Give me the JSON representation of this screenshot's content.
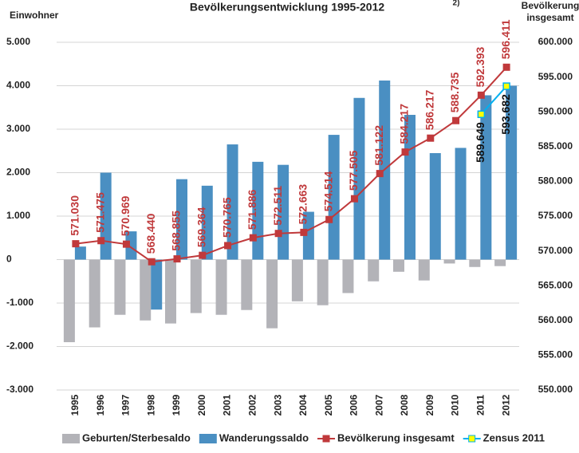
{
  "chart_data": {
    "type": "bar",
    "title": "Bevölkerungsentwicklung 1995-2012",
    "title_note": "2)",
    "y_label": "Einwohner",
    "y2_label": "Bevölkerung insgesamt",
    "categories": [
      "1995",
      "1996",
      "1997",
      "1998",
      "1999",
      "2000",
      "2001",
      "2002",
      "2003",
      "2004",
      "2005",
      "2006",
      "2007",
      "2008",
      "2009",
      "2010",
      "2011",
      "2012"
    ],
    "ylim": [
      -3000,
      5000
    ],
    "yticks": [
      {
        "value": -3000,
        "label": "-3.000"
      },
      {
        "value": -2000,
        "label": "-2.000"
      },
      {
        "value": -1000,
        "label": "-1.000"
      },
      0,
      {
        "value": 1000,
        "label": "1.000"
      },
      {
        "value": 2000,
        "label": "2.000"
      },
      {
        "value": 3000,
        "label": "3.000"
      },
      {
        "value": 4000,
        "label": "4.000"
      },
      {
        "value": 5000,
        "label": "5.000"
      }
    ],
    "y2lim": [
      550000,
      600000
    ],
    "y2ticks": [
      {
        "value": 550000,
        "label": "550.000"
      },
      {
        "value": 555000,
        "label": "555.000"
      },
      {
        "value": 560000,
        "label": "560.000"
      },
      {
        "value": 565000,
        "label": "565.000"
      },
      {
        "value": 570000,
        "label": "570.000"
      },
      {
        "value": 575000,
        "label": "575.000"
      },
      {
        "value": 580000,
        "label": "580.000"
      },
      {
        "value": 585000,
        "label": "585.000"
      },
      {
        "value": 590000,
        "label": "590.000"
      },
      {
        "value": 595000,
        "label": "595.000"
      },
      {
        "value": 600000,
        "label": "600.000"
      }
    ],
    "grid": true,
    "legend": "bottom",
    "series": [
      {
        "name": "Geburten/Sterbesaldo",
        "type": "bar",
        "color": "#b3b3b8",
        "values": [
          -1900,
          -1560,
          -1270,
          -1400,
          -1470,
          -1230,
          -1270,
          -1160,
          -1580,
          -960,
          -1050,
          -770,
          -500,
          -280,
          -480,
          -90,
          -170,
          -150
        ]
      },
      {
        "name": "Wanderungssaldo",
        "type": "bar",
        "color": "#4a8fc2",
        "values": [
          300,
          2000,
          650,
          -1150,
          1850,
          1700,
          2650,
          2250,
          2180,
          1100,
          2870,
          3720,
          4120,
          3330,
          2450,
          2570,
          3780,
          4000
        ]
      },
      {
        "name": "Bevölkerung insgesamt",
        "type": "line",
        "axis": "y2",
        "color": "#c0393b",
        "values": [
          571030,
          571475,
          570969,
          568440,
          568855,
          569364,
          570765,
          571886,
          572511,
          572663,
          574514,
          577505,
          581122,
          584217,
          586217,
          588735,
          592393,
          596411
        ],
        "value_labels": [
          "571.030",
          "571.475",
          "570.969",
          "568.440",
          "568.855",
          "569.364",
          "570.765",
          "571.886",
          "572.511",
          "572.663",
          "574.514",
          "577.505",
          "581.122",
          "584.217",
          "586.217",
          "588.735",
          "592.393",
          "596.411"
        ]
      },
      {
        "name": "Zensus 2011",
        "type": "line",
        "axis": "y2",
        "color": "#00b0f0",
        "values": [
          null,
          null,
          null,
          null,
          null,
          null,
          null,
          null,
          null,
          null,
          null,
          null,
          null,
          null,
          null,
          null,
          589649,
          593682
        ],
        "value_labels": [
          null,
          null,
          null,
          null,
          null,
          null,
          null,
          null,
          null,
          null,
          null,
          null,
          null,
          null,
          null,
          null,
          "589.649",
          "593.682"
        ]
      }
    ]
  }
}
